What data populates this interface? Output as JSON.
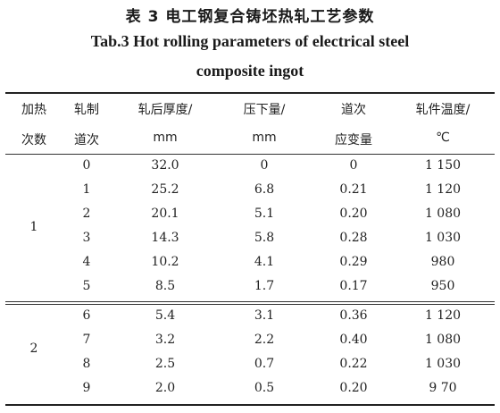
{
  "caption": {
    "chinese": "表 3    电工钢复合铸坯热轧工艺参数",
    "english_line1": "Tab.3    Hot rolling parameters of electrical steel",
    "english_line2": "composite ingot"
  },
  "headers": [
    {
      "line1": "加热",
      "line2": "次数"
    },
    {
      "line1": "轧制",
      "line2": "道次"
    },
    {
      "line1": "轧后厚度/",
      "line2": "mm"
    },
    {
      "line1": "压下量/",
      "line2": "mm"
    },
    {
      "line1": "道次",
      "line2": "应变量"
    },
    {
      "line1": "轧件温度/",
      "line2": "℃"
    }
  ],
  "groups": [
    {
      "heating": "1",
      "rows": [
        {
          "pass": "0",
          "thickness": "32.0",
          "reduction": "0",
          "strain": "0",
          "temperature": "1 150"
        },
        {
          "pass": "1",
          "thickness": "25.2",
          "reduction": "6.8",
          "strain": "0.21",
          "temperature": "1 120"
        },
        {
          "pass": "2",
          "thickness": "20.1",
          "reduction": "5.1",
          "strain": "0.20",
          "temperature": "1 080"
        },
        {
          "pass": "3",
          "thickness": "14.3",
          "reduction": "5.8",
          "strain": "0.28",
          "temperature": "1 030"
        },
        {
          "pass": "4",
          "thickness": "10.2",
          "reduction": "4.1",
          "strain": "0.29",
          "temperature": "980"
        },
        {
          "pass": "5",
          "thickness": "8.5",
          "reduction": "1.7",
          "strain": "0.17",
          "temperature": "950"
        }
      ]
    },
    {
      "heating": "2",
      "rows": [
        {
          "pass": "6",
          "thickness": "5.4",
          "reduction": "3.1",
          "strain": "0.36",
          "temperature": "1 120"
        },
        {
          "pass": "7",
          "thickness": "3.2",
          "reduction": "2.2",
          "strain": "0.40",
          "temperature": "1 080"
        },
        {
          "pass": "8",
          "thickness": "2.5",
          "reduction": "0.7",
          "strain": "0.22",
          "temperature": "1 030"
        },
        {
          "pass": "9",
          "thickness": "2.0",
          "reduction": "0.5",
          "strain": "0.20",
          "temperature": "9 70"
        }
      ]
    }
  ]
}
